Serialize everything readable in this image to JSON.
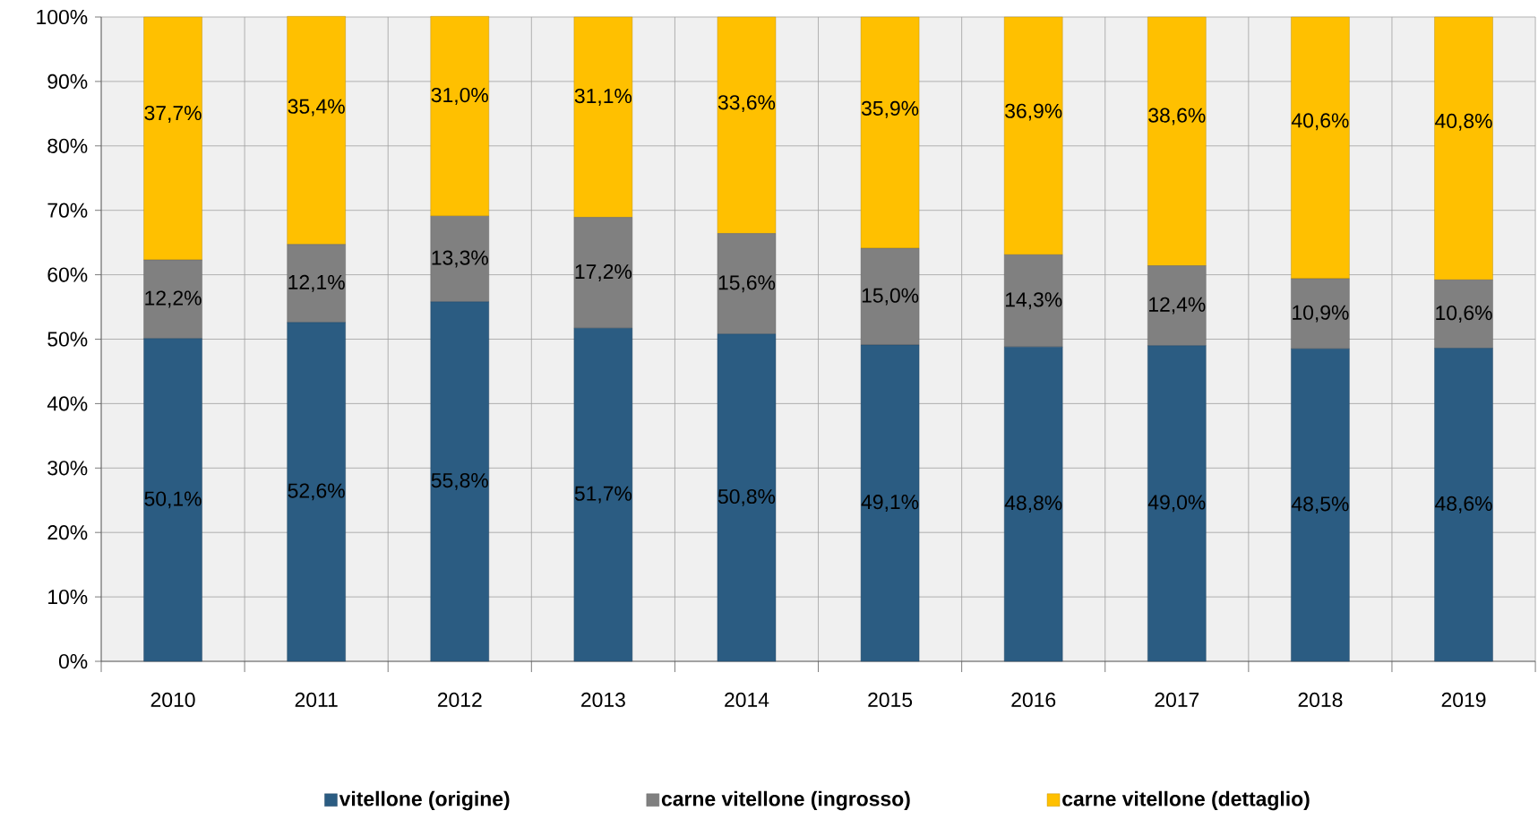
{
  "chart_data": {
    "type": "bar",
    "stacked": true,
    "grid": true,
    "legend": "bottom",
    "categories": [
      "2010",
      "2011",
      "2012",
      "2013",
      "2014",
      "2015",
      "2016",
      "2017",
      "2018",
      "2019"
    ],
    "ylim": [
      0,
      100
    ],
    "yticks": [
      {
        "value": 0,
        "label": "0%"
      },
      {
        "value": 10,
        "label": "10%"
      },
      {
        "value": 20,
        "label": "20%"
      },
      {
        "value": 30,
        "label": "30%"
      },
      {
        "value": 40,
        "label": "40%"
      },
      {
        "value": 50,
        "label": "50%"
      },
      {
        "value": 60,
        "label": "60%"
      },
      {
        "value": 70,
        "label": "70%"
      },
      {
        "value": 80,
        "label": "80%"
      },
      {
        "value": 90,
        "label": "90%"
      },
      {
        "value": 100,
        "label": "100%"
      }
    ],
    "series": [
      {
        "name": "vitellone (origine)",
        "color": "#2b5c82",
        "values": [
          50.1,
          52.6,
          55.8,
          51.7,
          50.8,
          49.1,
          48.8,
          49.0,
          48.5,
          48.6
        ],
        "value_labels": [
          "50,1%",
          "52,6%",
          "55,8%",
          "51,7%",
          "50,8%",
          "49,1%",
          "48,8%",
          "49,0%",
          "48,5%",
          "48,6%"
        ]
      },
      {
        "name": "carne vitellone (ingrosso)",
        "color": "#808080",
        "values": [
          12.2,
          12.1,
          13.3,
          17.2,
          15.6,
          15.0,
          14.3,
          12.4,
          10.9,
          10.6
        ],
        "value_labels": [
          "12,2%",
          "12,1%",
          "13,3%",
          "17,2%",
          "15,6%",
          "15,0%",
          "14,3%",
          "12,4%",
          "10,9%",
          "10,6%"
        ]
      },
      {
        "name": "carne vitellone (dettaglio)",
        "color": "#ffc000",
        "values": [
          37.7,
          35.4,
          31.0,
          31.1,
          33.6,
          35.9,
          36.9,
          38.6,
          40.6,
          40.8
        ],
        "value_labels": [
          "37,7%",
          "35,4%",
          "31,0%",
          "31,1%",
          "33,6%",
          "35,9%",
          "36,9%",
          "38,6%",
          "40,6%",
          "40,8%"
        ]
      }
    ]
  }
}
